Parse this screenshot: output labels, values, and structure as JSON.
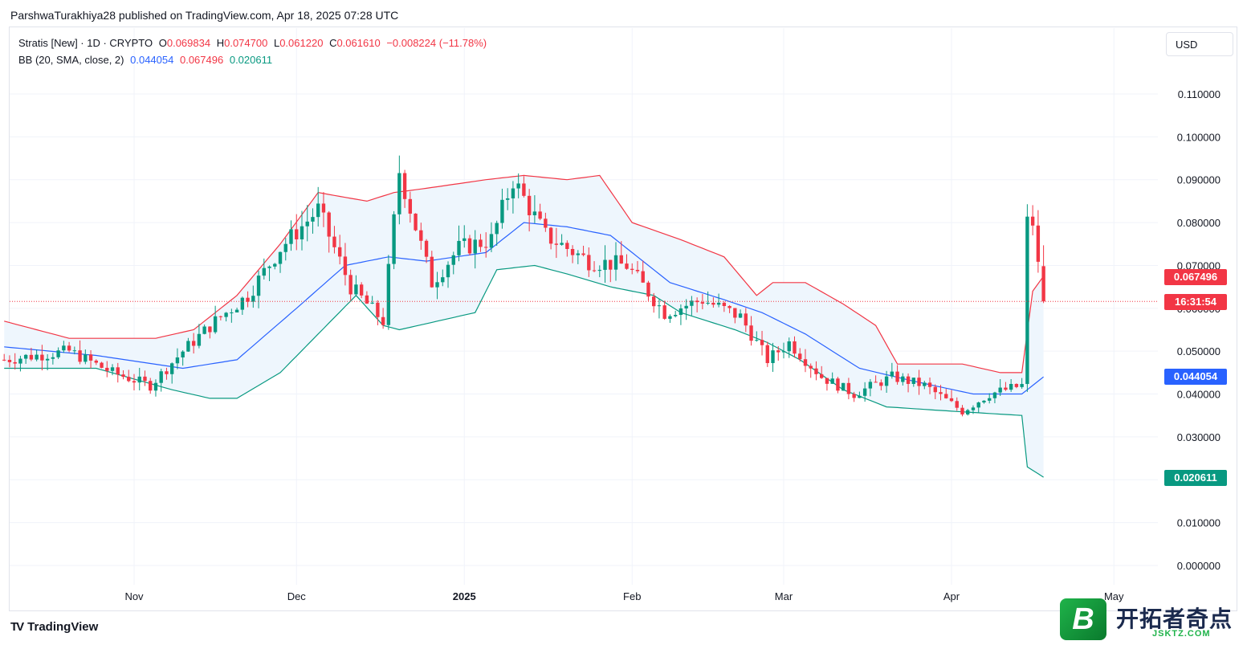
{
  "header": {
    "published_line": "ParshwaTurakhiya28 published on TradingView.com, Apr 18, 2025 07:28 UTC"
  },
  "legend": {
    "symbol": "Stratis [New] · 1D · CRYPTO",
    "o_label": "O",
    "o_value": "0.069834",
    "h_label": "H",
    "h_value": "0.074700",
    "l_label": "L",
    "l_value": "0.061220",
    "c_label": "C",
    "c_value": "0.061610",
    "change": "−0.008224 (−11.78%)",
    "bb_label": "BB (20, SMA, close, 2)",
    "bb_basis": "0.044054",
    "bb_upper": "0.067496",
    "bb_lower": "0.020611"
  },
  "currency_button": "USD",
  "price_tags": {
    "upper": "0.067496",
    "countdown": "16:31:54",
    "basis": "0.044054",
    "lower": "0.020611"
  },
  "footer": {
    "brand_mark": "TV",
    "brand": "TradingView"
  },
  "watermark": {
    "logo_letter": "B",
    "text": "开拓者奇点",
    "sub": "JSKTZ.COM"
  },
  "colors": {
    "up": "#089981",
    "down": "#f23645",
    "basis": "#2962ff",
    "upper": "#f23645",
    "lower": "#089981",
    "fill": "#eef6fd"
  },
  "chart_data": {
    "type": "candlestick",
    "title": "Stratis [New] · 1D · CRYPTO",
    "ylim": [
      -0.003,
      0.12
    ],
    "y_ticks": [
      "0.110000",
      "0.100000",
      "0.090000",
      "0.080000",
      "0.070000",
      "0.060000",
      "0.050000",
      "0.040000",
      "0.030000",
      "0.020000",
      "0.010000",
      "0.000000"
    ],
    "y_tick_values": [
      0.11,
      0.1,
      0.09,
      0.08,
      0.07,
      0.06,
      0.05,
      0.04,
      0.03,
      0.02,
      0.01,
      0.0
    ],
    "x_ticks": [
      {
        "label": "Nov",
        "date": "2024-11-01"
      },
      {
        "label": "Dec",
        "date": "2024-12-01"
      },
      {
        "label": "2025",
        "date": "2025-01-01"
      },
      {
        "label": "Feb",
        "date": "2025-02-01"
      },
      {
        "label": "Mar",
        "date": "2025-03-01"
      },
      {
        "label": "Apr",
        "date": "2025-04-01"
      },
      {
        "label": "May",
        "date": "2025-05-01"
      }
    ],
    "x_range": [
      "2024-10-08",
      "2025-05-20"
    ],
    "last_close": 0.06161,
    "candles_anchor": [
      {
        "date": "2024-10-08",
        "close": 0.048
      },
      {
        "date": "2024-10-20",
        "close": 0.05
      },
      {
        "date": "2024-10-28",
        "close": 0.045
      },
      {
        "date": "2024-11-04",
        "close": 0.042
      },
      {
        "date": "2024-11-10",
        "close": 0.05
      },
      {
        "date": "2024-11-16",
        "close": 0.057
      },
      {
        "date": "2024-11-22",
        "close": 0.063
      },
      {
        "date": "2024-11-28",
        "close": 0.074
      },
      {
        "date": "2024-12-05",
        "close": 0.083
      },
      {
        "date": "2024-12-11",
        "close": 0.065
      },
      {
        "date": "2024-12-17",
        "close": 0.057
      },
      {
        "date": "2024-12-20",
        "close": 0.092
      },
      {
        "date": "2024-12-26",
        "close": 0.066
      },
      {
        "date": "2024-12-31",
        "close": 0.074
      },
      {
        "date": "2025-01-06",
        "close": 0.076
      },
      {
        "date": "2025-01-10",
        "close": 0.09
      },
      {
        "date": "2025-01-16",
        "close": 0.077
      },
      {
        "date": "2025-01-24",
        "close": 0.071
      },
      {
        "date": "2025-01-31",
        "close": 0.07
      },
      {
        "date": "2025-02-07",
        "close": 0.059
      },
      {
        "date": "2025-02-14",
        "close": 0.062
      },
      {
        "date": "2025-02-21",
        "close": 0.058
      },
      {
        "date": "2025-02-26",
        "close": 0.048
      },
      {
        "date": "2025-03-02",
        "close": 0.052
      },
      {
        "date": "2025-03-08",
        "close": 0.044
      },
      {
        "date": "2025-03-14",
        "close": 0.04
      },
      {
        "date": "2025-03-21",
        "close": 0.044
      },
      {
        "date": "2025-03-27",
        "close": 0.042
      },
      {
        "date": "2025-04-03",
        "close": 0.036
      },
      {
        "date": "2025-04-08",
        "close": 0.04
      },
      {
        "date": "2025-04-14",
        "close": 0.042
      },
      {
        "date": "2025-04-15",
        "close": 0.08
      },
      {
        "date": "2025-04-16",
        "close": 0.08
      },
      {
        "date": "2025-04-17",
        "close": 0.0698
      },
      {
        "date": "2025-04-18",
        "close": 0.06161
      }
    ],
    "bb_upper": [
      {
        "date": "2024-10-08",
        "value": 0.057
      },
      {
        "date": "2024-10-20",
        "value": 0.053
      },
      {
        "date": "2024-11-05",
        "value": 0.053
      },
      {
        "date": "2024-11-12",
        "value": 0.055
      },
      {
        "date": "2024-11-20",
        "value": 0.063
      },
      {
        "date": "2024-11-28",
        "value": 0.075
      },
      {
        "date": "2024-12-05",
        "value": 0.087
      },
      {
        "date": "2024-12-14",
        "value": 0.085
      },
      {
        "date": "2024-12-19",
        "value": 0.087
      },
      {
        "date": "2024-12-25",
        "value": 0.088
      },
      {
        "date": "2025-01-05",
        "value": 0.09
      },
      {
        "date": "2025-01-12",
        "value": 0.091
      },
      {
        "date": "2025-01-20",
        "value": 0.09
      },
      {
        "date": "2025-01-26",
        "value": 0.091
      },
      {
        "date": "2025-02-01",
        "value": 0.08
      },
      {
        "date": "2025-02-10",
        "value": 0.076
      },
      {
        "date": "2025-02-18",
        "value": 0.072
      },
      {
        "date": "2025-02-24",
        "value": 0.063
      },
      {
        "date": "2025-02-27",
        "value": 0.066
      },
      {
        "date": "2025-03-05",
        "value": 0.066
      },
      {
        "date": "2025-03-12",
        "value": 0.061
      },
      {
        "date": "2025-03-18",
        "value": 0.056
      },
      {
        "date": "2025-03-22",
        "value": 0.047
      },
      {
        "date": "2025-04-03",
        "value": 0.047
      },
      {
        "date": "2025-04-10",
        "value": 0.045
      },
      {
        "date": "2025-04-14",
        "value": 0.045
      },
      {
        "date": "2025-04-16",
        "value": 0.064
      },
      {
        "date": "2025-04-18",
        "value": 0.0675
      }
    ],
    "bb_basis": [
      {
        "date": "2024-10-08",
        "value": 0.051
      },
      {
        "date": "2024-10-25",
        "value": 0.049
      },
      {
        "date": "2024-11-10",
        "value": 0.046
      },
      {
        "date": "2024-11-20",
        "value": 0.048
      },
      {
        "date": "2024-12-01",
        "value": 0.06
      },
      {
        "date": "2024-12-10",
        "value": 0.07
      },
      {
        "date": "2024-12-18",
        "value": 0.072
      },
      {
        "date": "2024-12-25",
        "value": 0.071
      },
      {
        "date": "2025-01-05",
        "value": 0.073
      },
      {
        "date": "2025-01-12",
        "value": 0.08
      },
      {
        "date": "2025-01-20",
        "value": 0.079
      },
      {
        "date": "2025-01-28",
        "value": 0.077
      },
      {
        "date": "2025-02-08",
        "value": 0.066
      },
      {
        "date": "2025-02-18",
        "value": 0.062
      },
      {
        "date": "2025-02-25",
        "value": 0.059
      },
      {
        "date": "2025-03-05",
        "value": 0.054
      },
      {
        "date": "2025-03-15",
        "value": 0.046
      },
      {
        "date": "2025-03-25",
        "value": 0.043
      },
      {
        "date": "2025-04-05",
        "value": 0.04
      },
      {
        "date": "2025-04-14",
        "value": 0.04
      },
      {
        "date": "2025-04-18",
        "value": 0.044
      }
    ],
    "bb_lower": [
      {
        "date": "2024-10-08",
        "value": 0.046
      },
      {
        "date": "2024-10-25",
        "value": 0.046
      },
      {
        "date": "2024-11-08",
        "value": 0.041
      },
      {
        "date": "2024-11-15",
        "value": 0.039
      },
      {
        "date": "2024-11-20",
        "value": 0.039
      },
      {
        "date": "2024-11-28",
        "value": 0.045
      },
      {
        "date": "2024-12-05",
        "value": 0.054
      },
      {
        "date": "2024-12-12",
        "value": 0.063
      },
      {
        "date": "2024-12-17",
        "value": 0.056
      },
      {
        "date": "2024-12-20",
        "value": 0.055
      },
      {
        "date": "2025-01-03",
        "value": 0.059
      },
      {
        "date": "2025-01-07",
        "value": 0.069
      },
      {
        "date": "2025-01-14",
        "value": 0.07
      },
      {
        "date": "2025-01-20",
        "value": 0.068
      },
      {
        "date": "2025-01-28",
        "value": 0.065
      },
      {
        "date": "2025-02-05",
        "value": 0.063
      },
      {
        "date": "2025-02-10",
        "value": 0.059
      },
      {
        "date": "2025-02-20",
        "value": 0.055
      },
      {
        "date": "2025-02-26",
        "value": 0.052
      },
      {
        "date": "2025-03-04",
        "value": 0.048
      },
      {
        "date": "2025-03-12",
        "value": 0.041
      },
      {
        "date": "2025-03-20",
        "value": 0.037
      },
      {
        "date": "2025-04-01",
        "value": 0.036
      },
      {
        "date": "2025-04-14",
        "value": 0.035
      },
      {
        "date": "2025-04-15",
        "value": 0.023
      },
      {
        "date": "2025-04-18",
        "value": 0.0206
      }
    ]
  }
}
